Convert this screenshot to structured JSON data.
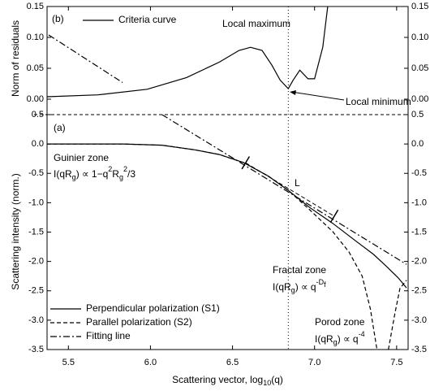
{
  "chart_data": [
    {
      "type": "line",
      "ylabel": "Norm of residuals",
      "ylim": [
        -0.025,
        0.15
      ],
      "yticks": [
        {
          "value": 0,
          "label": "0.00"
        },
        {
          "value": 0.05,
          "label": "0.05"
        },
        {
          "value": 0.1,
          "label": "0.10"
        },
        {
          "value": 0.15,
          "label": "0.15"
        }
      ],
      "legend": "upper left",
      "series": [
        {
          "name": "Criteria curve",
          "color": "#000000",
          "dash": "solid",
          "x": [
            5.37,
            5.68,
            5.98,
            6.22,
            6.42,
            6.54,
            6.61,
            6.68,
            6.74,
            6.79,
            6.84,
            6.87,
            6.91,
            6.96,
            7.0,
            7.05,
            7.08
          ],
          "values": [
            0.004,
            0.007,
            0.016,
            0.035,
            0.06,
            0.079,
            0.084,
            0.079,
            0.055,
            0.031,
            0.017,
            0.031,
            0.047,
            0.033,
            0.033,
            0.084,
            0.15
          ]
        },
        {
          "color": "#000000",
          "dash": "dashdot",
          "x": [
            5.38,
            5.83
          ],
          "values": [
            0.104,
            0.027
          ]
        }
      ],
      "annotations": [
        {
          "text": "(b)"
        },
        {
          "text": "Local maximum"
        },
        {
          "text": "Local minimum"
        }
      ]
    },
    {
      "type": "line",
      "ylabel": "Scattering intensity (norm.)",
      "xlabel": [
        "Scattering vector, log",
        "10",
        "(q)"
      ],
      "xlim": [
        5.37,
        7.57
      ],
      "xticks": [
        {
          "value": 5.5,
          "label": "5.5"
        },
        {
          "value": 6,
          "label": "6.0"
        },
        {
          "value": 6.5,
          "label": "6.5"
        },
        {
          "value": 7,
          "label": "7.0"
        },
        {
          "value": 7.5,
          "label": "7.5"
        }
      ],
      "ylim": [
        -3.5,
        0.5
      ],
      "yticks": [
        {
          "value": -3.5,
          "label": "-3.5"
        },
        {
          "value": -3,
          "label": "-3.0"
        },
        {
          "value": -2.5,
          "label": "-2.5"
        },
        {
          "value": -2,
          "label": "-2.0"
        },
        {
          "value": -1.5,
          "label": "-1.5"
        },
        {
          "value": -1,
          "label": "-1.0"
        },
        {
          "value": -0.5,
          "label": "-0.5"
        },
        {
          "value": 0,
          "label": "0.0"
        },
        {
          "value": 0.5,
          "label": "0.5"
        }
      ],
      "legend": "lower left",
      "series": [
        {
          "name": "Perpendicular polarization (S1)",
          "color": "#000000",
          "dash": "solid",
          "x": [
            5.37,
            5.83,
            6.07,
            6.27,
            6.42,
            6.57,
            6.72,
            6.84,
            6.97,
            7.11,
            7.26,
            7.36,
            7.44,
            7.51,
            7.56
          ],
          "values": [
            0,
            0,
            -0.02,
            -0.1,
            -0.18,
            -0.32,
            -0.55,
            -0.79,
            -1.08,
            -1.35,
            -1.67,
            -1.88,
            -2.09,
            -2.28,
            -2.45
          ]
        },
        {
          "name": "Parallel polarization (S2)",
          "color": "#000000",
          "dash": "dashed",
          "x": [
            5.37,
            5.83,
            6.07,
            6.27,
            6.42,
            6.57,
            6.72,
            6.84,
            6.97,
            7.11,
            7.21,
            7.29,
            7.34,
            7.38,
            7.42,
            7.45,
            7.49,
            7.52,
            7.56
          ],
          "values": [
            0,
            0,
            -0.02,
            -0.1,
            -0.18,
            -0.32,
            -0.55,
            -0.79,
            -1.12,
            -1.49,
            -1.84,
            -2.25,
            -2.81,
            -3.5,
            null,
            -3.5,
            -2.88,
            -2.46,
            -2.32
          ]
        },
        {
          "name": "Fitting line",
          "color": "#000000",
          "dash": "dashdot",
          "x": [
            6.07,
            7.56
          ],
          "values": [
            0.5,
            -2.05
          ]
        }
      ],
      "annotations": [
        {
          "text": "(a)"
        },
        {
          "text": "Guinier zone"
        },
        {
          "parts": [
            "I(qR",
            "g",
            ") ∝ 1−q",
            "2",
            "R",
            "g",
            "2",
            "/3"
          ]
        },
        {
          "text": "Fractal zone"
        },
        {
          "parts": [
            "I(qR",
            "g",
            ") ∝ q",
            "-D",
            "f"
          ]
        },
        {
          "text": "Porod zone"
        },
        {
          "parts": [
            "I(qR",
            "g",
            ") ∝ q",
            "-4"
          ]
        },
        {
          "text": "L",
          "x": [
            6.58,
            7.12
          ],
          "values": [
            -0.32,
            -1.23
          ]
        }
      ]
    }
  ],
  "reference_line": {
    "x": 6.84
  }
}
